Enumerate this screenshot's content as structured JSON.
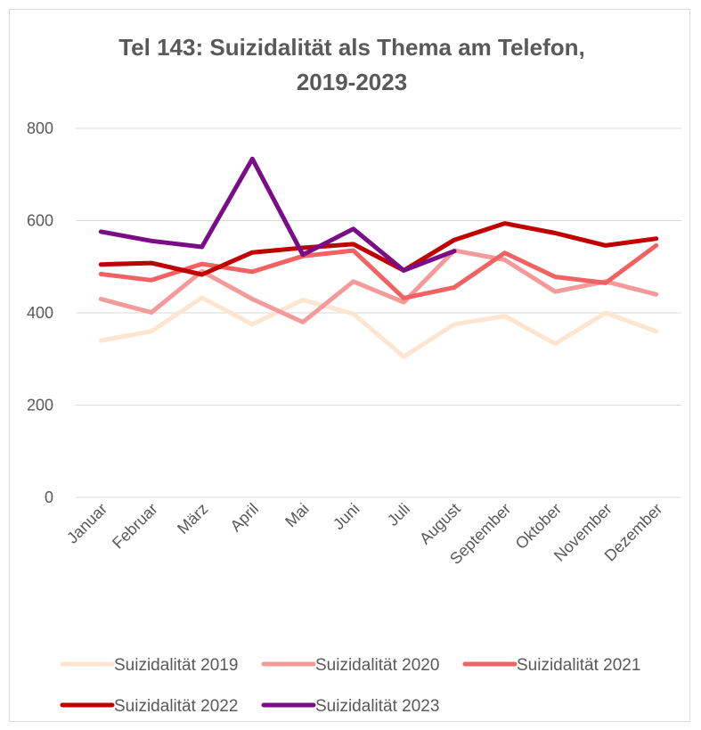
{
  "chart_data": {
    "type": "line",
    "title_line1": "Tel 143: Suizidalität als Thema am Telefon,",
    "title_line2": "2019-2023",
    "xlabel": "",
    "ylabel": "",
    "ylim": [
      0,
      800
    ],
    "yticks": [
      0,
      200,
      400,
      600,
      800
    ],
    "grid": true,
    "legend_position": "bottom",
    "categories": [
      "Januar",
      "Februar",
      "März",
      "April",
      "Mai",
      "Juni",
      "Juli",
      "August",
      "September",
      "Oktober",
      "November",
      "Dezember"
    ],
    "series": [
      {
        "name": "Suizidalität 2019",
        "color": "#fde5d0",
        "values": [
          340,
          360,
          433,
          375,
          428,
          398,
          305,
          375,
          393,
          333,
          400,
          360
        ]
      },
      {
        "name": "Suizidalität 2020",
        "color": "#f59a9a",
        "values": [
          430,
          401,
          490,
          430,
          380,
          468,
          423,
          535,
          515,
          446,
          468,
          440
        ]
      },
      {
        "name": "Suizidalität 2021",
        "color": "#f26262",
        "values": [
          484,
          471,
          506,
          489,
          523,
          535,
          432,
          455,
          530,
          478,
          465,
          546
        ]
      },
      {
        "name": "Suizidalität 2022",
        "color": "#c00000",
        "values": [
          505,
          508,
          483,
          531,
          541,
          549,
          492,
          558,
          594,
          573,
          546,
          561
        ]
      },
      {
        "name": "Suizidalität 2023",
        "color": "#7b0c87",
        "values": [
          576,
          556,
          543,
          734,
          526,
          582,
          492,
          534,
          null,
          null,
          null,
          null
        ]
      }
    ]
  }
}
